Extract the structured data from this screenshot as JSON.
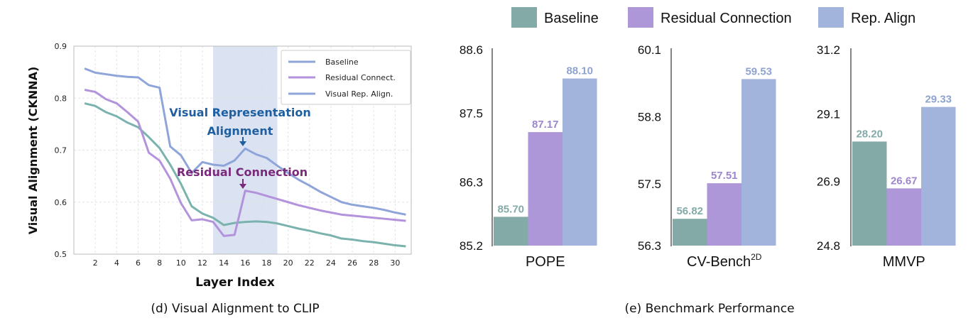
{
  "colors": {
    "baseline": "#84aaa7",
    "residual": "#ae97d8",
    "repalign": "#a2b3dc",
    "line_baseline": "#7ab3ae",
    "line_residual": "#b393dc",
    "line_repalign": "#8fa5da",
    "anno_blue": "#1f5fa0",
    "anno_purple": "#7a2a7a",
    "highlight": "#dbe3f3",
    "label_baseline": "#84aaa7",
    "label_residual": "#9d86cc",
    "label_repalign": "#8ea3d0"
  },
  "captions": {
    "left": "(d) Visual Alignment to CLIP",
    "right": "(e) Benchmark Performance"
  },
  "line_chart": {
    "legend": [
      "Baseline",
      "Residual Connect.",
      "Visual Rep. Align."
    ],
    "annotations": {
      "visual_rep_line1": "Visual Representation",
      "visual_rep_line2": "Alignment",
      "residual": "Residual Connection"
    }
  },
  "bar_legend": [
    "Baseline",
    "Residual Connection",
    "Rep. Align"
  ],
  "chart_data": [
    {
      "type": "line",
      "title": "",
      "xlabel": "Layer Index",
      "ylabel": "Visual Alignment (CKNNA)",
      "xlim": [
        0,
        31.5
      ],
      "ylim": [
        0.5,
        0.9
      ],
      "xticks": [
        2,
        4,
        6,
        8,
        10,
        12,
        14,
        16,
        18,
        20,
        22,
        24,
        26,
        28,
        30
      ],
      "yticks": [
        "0.5",
        "0.6",
        "0.7",
        "0.8",
        "0.9"
      ],
      "highlight_x_range": [
        13,
        19
      ],
      "grid": true,
      "legend_position": "top-right",
      "x": [
        1,
        2,
        3,
        4,
        5,
        6,
        7,
        8,
        9,
        10,
        11,
        12,
        13,
        14,
        15,
        16,
        17,
        18,
        19,
        20,
        21,
        22,
        23,
        24,
        25,
        26,
        27,
        28,
        29,
        30,
        31
      ],
      "series": [
        {
          "key": "baseline",
          "values": [
            0.79,
            0.785,
            0.773,
            0.765,
            0.753,
            0.744,
            0.725,
            0.704,
            0.672,
            0.635,
            0.592,
            0.578,
            0.57,
            0.556,
            0.56,
            0.562,
            0.563,
            0.562,
            0.559,
            0.554,
            0.549,
            0.545,
            0.54,
            0.536,
            0.53,
            0.528,
            0.525,
            0.523,
            0.52,
            0.517,
            0.515
          ]
        },
        {
          "key": "residual",
          "values": [
            0.816,
            0.812,
            0.798,
            0.79,
            0.773,
            0.755,
            0.695,
            0.68,
            0.645,
            0.598,
            0.565,
            0.567,
            0.562,
            0.535,
            0.537,
            0.622,
            0.618,
            0.612,
            0.606,
            0.6,
            0.594,
            0.589,
            0.584,
            0.58,
            0.576,
            0.574,
            0.572,
            0.57,
            0.568,
            0.566,
            0.564
          ]
        },
        {
          "key": "repalign",
          "values": [
            0.857,
            0.849,
            0.846,
            0.843,
            0.841,
            0.84,
            0.825,
            0.82,
            0.707,
            0.69,
            0.656,
            0.677,
            0.672,
            0.67,
            0.68,
            0.703,
            0.692,
            0.685,
            0.67,
            0.656,
            0.643,
            0.632,
            0.62,
            0.61,
            0.6,
            0.595,
            0.592,
            0.589,
            0.585,
            0.58,
            0.576
          ]
        }
      ]
    },
    {
      "type": "bar",
      "xlabel": "POPE",
      "ylim": [
        85.2,
        88.6
      ],
      "yticks": [
        "88.6",
        "87.5",
        "86.3",
        "85.2"
      ],
      "categories": [
        "Baseline",
        "Residual Connection",
        "Rep. Align"
      ],
      "values": [
        85.7,
        87.17,
        88.1
      ],
      "labels": [
        "85.70",
        "87.17",
        "88.10"
      ]
    },
    {
      "type": "bar",
      "xlabel": "CV-Bench",
      "xlabel_sup": "2D",
      "ylim": [
        56.3,
        60.1
      ],
      "yticks": [
        "60.1",
        "58.8",
        "57.5",
        "56.3"
      ],
      "categories": [
        "Baseline",
        "Residual Connection",
        "Rep. Align"
      ],
      "values": [
        56.82,
        57.51,
        59.53
      ],
      "labels": [
        "56.82",
        "57.51",
        "59.53"
      ]
    },
    {
      "type": "bar",
      "xlabel": "MMVP",
      "ylim": [
        24.8,
        31.2
      ],
      "yticks": [
        "31.2",
        "29.1",
        "26.9",
        "24.8"
      ],
      "categories": [
        "Baseline",
        "Residual Connection",
        "Rep. Align"
      ],
      "values": [
        28.2,
        26.67,
        29.33
      ],
      "labels": [
        "28.20",
        "26.67",
        "29.33"
      ]
    }
  ]
}
